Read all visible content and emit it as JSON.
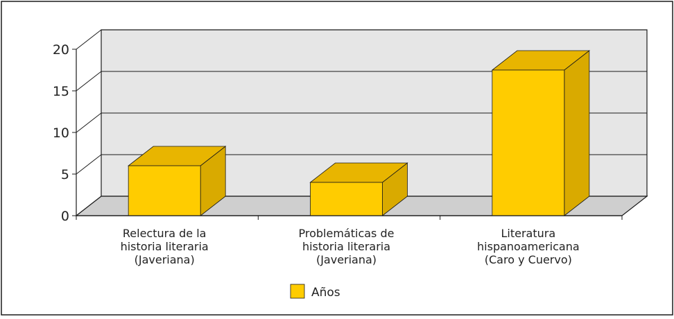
{
  "chart_data": {
    "type": "bar",
    "categories": [
      [
        "Relectura de la",
        "historia literaria",
        "(Javeriana)"
      ],
      [
        "Problemáticas de",
        "historia literaria",
        "(Javeriana)"
      ],
      [
        "Literatura",
        "hispanoamericana",
        "(Caro y Cuervo)"
      ]
    ],
    "series": [
      {
        "name": "Años",
        "values": [
          6,
          4,
          17.5
        ]
      }
    ],
    "yticks": [
      "0",
      "5",
      "10",
      "15",
      "20"
    ],
    "ylim": [
      0,
      20
    ],
    "grid": true,
    "three_d": true,
    "legend_position": "bottom-center"
  },
  "colors": {
    "bar_front": "#ffcc00",
    "bar_top": "#e8b500",
    "bar_side": "#d9aa00",
    "wall": "#e6e6e6",
    "floor": "#cfcfcf",
    "frame": "#1a1a1a"
  }
}
